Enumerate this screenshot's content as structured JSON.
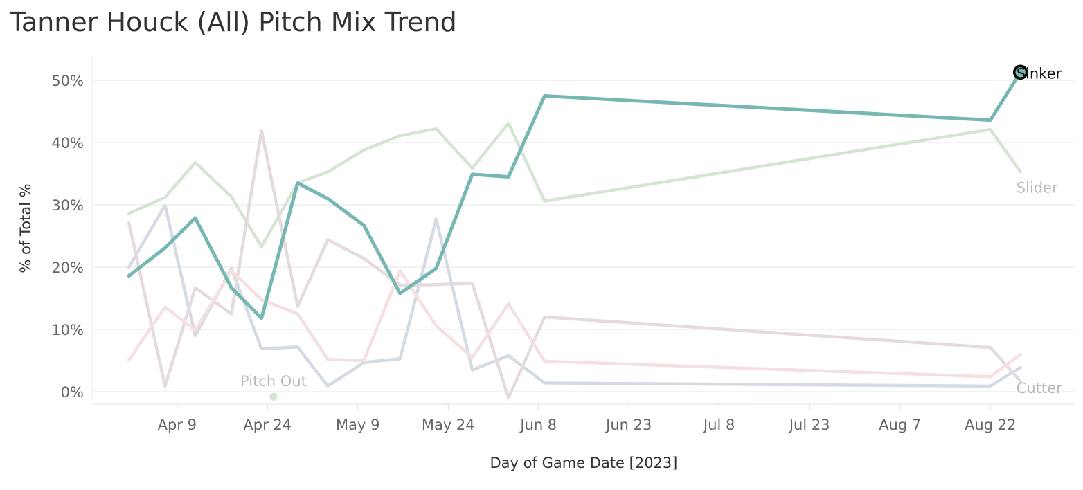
{
  "chart_data": {
    "type": "line",
    "title": "Tanner Houck (All) Pitch Mix Trend",
    "xlabel": "Day of Game Date [2023]",
    "ylabel": "% of Total %",
    "ylim": [
      -2,
      54
    ],
    "xlim": [
      "2023-03-26",
      "2023-09-05"
    ],
    "y_ticks": [
      0,
      10,
      20,
      30,
      40,
      50
    ],
    "y_tick_labels": [
      "0%",
      "10%",
      "20%",
      "30%",
      "40%",
      "50%"
    ],
    "x_ticks": [
      "2023-04-09",
      "2023-04-24",
      "2023-05-09",
      "2023-05-24",
      "2023-06-08",
      "2023-06-23",
      "2023-07-08",
      "2023-07-23",
      "2023-08-07",
      "2023-08-22"
    ],
    "x_tick_labels": [
      "Apr 9",
      "Apr 24",
      "May 9",
      "May 24",
      "Jun 8",
      "Jun 23",
      "Jul 8",
      "Jul 23",
      "Aug 7",
      "Aug 22"
    ],
    "grid": true,
    "legend": "none",
    "x": [
      "2023-04-01",
      "2023-04-07",
      "2023-04-12",
      "2023-04-18",
      "2023-04-23",
      "2023-04-29",
      "2023-05-04",
      "2023-05-10",
      "2023-05-16",
      "2023-05-22",
      "2023-05-28",
      "2023-06-03",
      "2023-06-09",
      "2023-06-15",
      "2023-08-22",
      "2023-08-27"
    ],
    "series": [
      {
        "name": "Sinker",
        "color": "#76b7b2",
        "highlight": true,
        "label_shown": true,
        "values": [
          18.6,
          23.1,
          27.9,
          16.7,
          11.8,
          33.5,
          31.0,
          26.7,
          15.8,
          19.8,
          34.9,
          34.5,
          47.5,
          null,
          43.6,
          51.3
        ]
      },
      {
        "name": "Slider",
        "color": "#d6e4d3",
        "highlight": false,
        "label_shown": true,
        "values": [
          28.6,
          31.2,
          36.8,
          31.3,
          23.3,
          33.5,
          35.3,
          38.8,
          41.1,
          42.2,
          35.9,
          43.1,
          30.6,
          null,
          42.1,
          35.3
        ]
      },
      {
        "name": "Cutter",
        "color": "#d4dbe4",
        "highlight": false,
        "label_shown": true,
        "values": [
          20.0,
          29.9,
          9.0,
          19.8,
          6.9,
          7.2,
          0.9,
          4.7,
          5.3,
          27.7,
          3.5,
          5.8,
          1.4,
          null,
          0.9,
          3.9
        ]
      },
      {
        "name": "",
        "color": "#e4dadf",
        "highlight": false,
        "label_shown": false,
        "values": [
          27.1,
          0.9,
          16.7,
          12.5,
          41.9,
          13.7,
          24.4,
          21.4,
          17.1,
          17.2,
          17.4,
          -1.0,
          12.0,
          null,
          7.1,
          1.7
        ]
      },
      {
        "name": "",
        "color": "#f4dfe1",
        "highlight": false,
        "label_shown": false,
        "values": [
          5.1,
          13.6,
          9.9,
          19.4,
          14.8,
          12.5,
          5.2,
          5.0,
          19.4,
          10.6,
          5.5,
          14.1,
          4.9,
          null,
          2.4,
          6.0
        ]
      },
      {
        "name": "Pitch Out",
        "color": "#d6e4d3",
        "highlight": false,
        "label_shown": true,
        "points": [
          {
            "x": "2023-04-25",
            "value": -0.8
          }
        ]
      }
    ]
  }
}
